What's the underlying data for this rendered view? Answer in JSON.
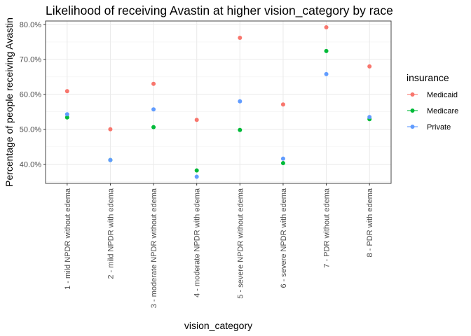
{
  "chart_data": {
    "type": "scatter",
    "title": "Likelihood of receiving Avastin at higher vision_category by race",
    "xlabel": "vision_category",
    "ylabel": "Percentage of people receiving Avastin",
    "categories": [
      "1 - mild NPDR without edema",
      "2 - mild NPDR with edema",
      "3 -  moderate NPDR without edema",
      "4 - moderate NPDR with edema",
      "5 - severe NPDR without edema",
      "6 - severe NPDR with edema",
      "7 - PDR without edema",
      "8 - PDR with edema"
    ],
    "ylim": [
      34.5,
      81.0
    ],
    "yticks": [
      40,
      50,
      60,
      70,
      80
    ],
    "ytick_labels": [
      "40.0%",
      "50.0%",
      "60.0%",
      "70.0%",
      "80.0%"
    ],
    "grid": true,
    "legend_title": "insurance",
    "legend_position": "right",
    "series": [
      {
        "name": "Medicaid",
        "color": "#F8766D",
        "values": [
          60.9,
          50.0,
          63.0,
          52.7,
          76.2,
          57.1,
          79.2,
          68.0
        ]
      },
      {
        "name": "Medicare",
        "color": "#00BA38",
        "values": [
          53.4,
          41.2,
          50.6,
          38.2,
          49.8,
          40.3,
          72.4,
          52.9
        ]
      },
      {
        "name": "Private",
        "color": "#619CFF",
        "values": [
          54.3,
          41.2,
          55.7,
          36.4,
          58.0,
          41.6,
          65.8,
          53.5
        ]
      }
    ]
  }
}
